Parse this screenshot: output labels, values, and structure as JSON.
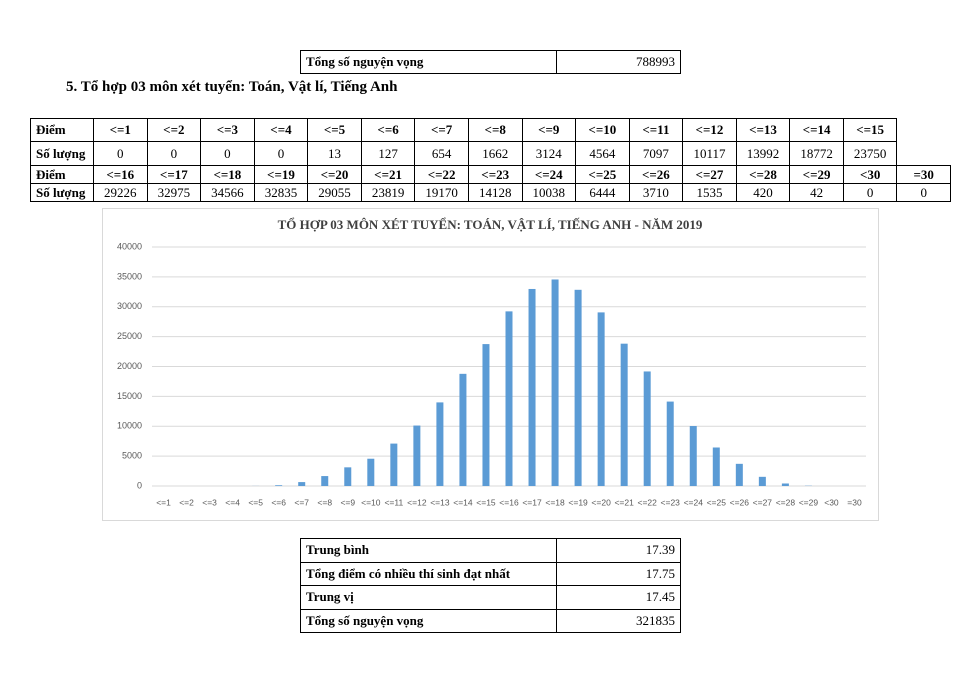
{
  "summary_table": {
    "rows": [
      [
        "Tổng số nguyện vọng",
        788993
      ]
    ]
  },
  "heading": "5. Tổ hợp 03 môn xét tuyển: Toán, Vật lí, Tiếng Anh",
  "score_table": {
    "rows": [
      [
        "Điểm",
        "<=1",
        "<=2",
        "<=3",
        "<=4",
        "<=5",
        "<=6",
        "<=7",
        "<=8",
        "<=9",
        "<=10",
        "<=11",
        "<=12",
        "<=13",
        "<=14",
        "<=15"
      ],
      [
        "Số lượng",
        0,
        0,
        0,
        0,
        13,
        127,
        654,
        1662,
        3124,
        4564,
        7097,
        10117,
        13992,
        18772,
        23750
      ],
      [
        "Điểm",
        "<=16",
        "<=17",
        "<=18",
        "<=19",
        "<=20",
        "<=21",
        "<=22",
        "<=23",
        "<=24",
        "<=25",
        "<=26",
        "<=27",
        "<=28",
        "<=29",
        "<30",
        "=30"
      ],
      [
        "Số lượng",
        29226,
        32975,
        34566,
        32835,
        29055,
        23819,
        19170,
        14128,
        10038,
        6444,
        3710,
        1535,
        420,
        42,
        0,
        0
      ]
    ]
  },
  "chart_data": {
    "type": "bar",
    "title": "TỔ HỢP 03 MÔN XÉT TUYỂN: TOÁN, VẬT LÍ, TIẾNG ANH - NĂM 2019",
    "categories": [
      "<=1",
      "<=2",
      "<=3",
      "<=4",
      "<=5",
      "<=6",
      "<=7",
      "<=8",
      "<=9",
      "<=10",
      "<=11",
      "<=12",
      "<=13",
      "<=14",
      "<=15",
      "<=16",
      "<=17",
      "<=18",
      "<=19",
      "<=20",
      "<=21",
      "<=22",
      "<=23",
      "<=24",
      "<=25",
      "<=26",
      "<=27",
      "<=28",
      "<=29",
      "<30",
      "=30"
    ],
    "values": [
      0,
      0,
      0,
      0,
      13,
      127,
      654,
      1662,
      3124,
      4564,
      7097,
      10117,
      13992,
      18772,
      23750,
      29226,
      32975,
      34566,
      32835,
      29055,
      23819,
      19170,
      14128,
      10038,
      6444,
      3710,
      1535,
      420,
      42,
      0,
      0
    ],
    "color": "#5b9bd5",
    "ylim": [
      0,
      40000
    ],
    "yticks": [
      0,
      5000,
      10000,
      15000,
      20000,
      25000,
      30000,
      35000,
      40000
    ],
    "grid": true
  },
  "stats_table": {
    "rows": [
      [
        "Trung bình",
        17.39
      ],
      [
        "Tổng điểm có nhiều thí sinh đạt nhất",
        17.75
      ],
      [
        "Trung vị",
        17.45
      ],
      [
        "Tổng số nguyện vọng",
        321835
      ]
    ]
  }
}
